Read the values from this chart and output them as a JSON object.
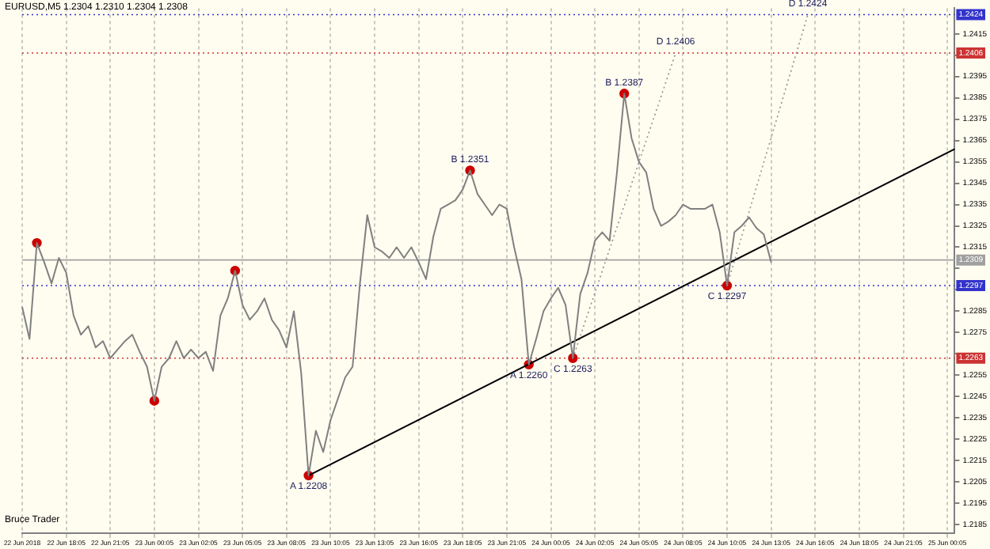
{
  "chart_data": {
    "type": "line",
    "title": "EURUSD,M5 1.2304 1.2310 1.2304 1.2308",
    "categories": [
      "22 Jun 2018",
      null,
      null,
      null,
      null,
      null,
      "22 Jun 18:05",
      null,
      null,
      null,
      null,
      null,
      "22 Jun 21:05",
      null,
      null,
      null,
      null,
      null,
      "23 Jun 00:05",
      null,
      null,
      null,
      null,
      null,
      "23 Jun 02:05",
      null,
      null,
      null,
      null,
      null,
      "23 Jun 05:05",
      null,
      null,
      null,
      null,
      null,
      "23 Jun 08:05",
      null,
      null,
      null,
      null,
      null,
      "23 Jun 10:05",
      null,
      null,
      null,
      null,
      null,
      "23 Jun 13:05",
      null,
      null,
      null,
      null,
      null,
      "23 Jun 16:05",
      null,
      null,
      null,
      null,
      null,
      "23 Jun 18:05",
      null,
      null,
      null,
      null,
      null,
      "23 Jun 21:05",
      null,
      null,
      null,
      null,
      null,
      "24 Jun 00:05",
      null,
      null,
      null,
      null,
      null,
      "24 Jun 02:05",
      null,
      null,
      null,
      null,
      null,
      "24 Jun 05:05",
      null,
      null,
      null,
      null,
      null,
      "24 Jun 08:05",
      null,
      null,
      null,
      null,
      null,
      "24 Jun 10:05",
      null,
      null,
      null,
      null,
      null,
      "24 Jun 13:05",
      null,
      null,
      null,
      null,
      null,
      "24 Jun 16:05",
      null,
      null,
      null,
      null,
      null,
      "24 Jun 18:05",
      null,
      null,
      null,
      null,
      null,
      "24 Jun 21:05",
      null,
      null,
      null,
      null,
      null,
      "25 Jun 00:05",
      null
    ],
    "series": [
      {
        "type": "line",
        "color": "#808080",
        "values": [
          1.2287,
          1.2272,
          1.2317,
          1.2308,
          1.2298,
          1.231,
          1.2303,
          1.2283,
          1.2274,
          1.2278,
          1.2268,
          1.2271,
          1.2263,
          1.2267,
          1.2271,
          1.2274,
          1.2266,
          1.2259,
          1.2243,
          1.2259,
          1.2263,
          1.2271,
          1.2263,
          1.2267,
          1.2263,
          1.2266,
          1.2257,
          1.2283,
          1.2291,
          1.2304,
          1.2288,
          1.2281,
          1.2285,
          1.2291,
          1.2281,
          1.2276,
          1.2268,
          1.2285,
          1.2256,
          1.2208,
          1.2229,
          1.2219,
          1.2234,
          1.2244,
          1.2254,
          1.2259,
          1.2298,
          1.233,
          1.2315,
          1.2313,
          1.231,
          1.2315,
          1.231,
          1.2315,
          1.2308,
          1.23,
          1.232,
          1.2333,
          1.2335,
          1.2337,
          1.2342,
          1.2351,
          1.234,
          1.2335,
          1.233,
          1.2335,
          1.2333,
          1.2315,
          1.23,
          1.226,
          1.2272,
          1.2285,
          1.2291,
          1.2296,
          1.2288,
          1.2263,
          1.2293,
          1.2303,
          1.2318,
          1.2322,
          1.2318,
          1.235,
          1.2387,
          1.2366,
          1.2355,
          1.235,
          1.2333,
          1.2325,
          1.2327,
          1.233,
          1.2335,
          1.2333,
          1.2333,
          1.2333,
          1.2335,
          1.2322,
          1.2297,
          1.2322,
          1.2325,
          1.2329,
          1.2324,
          1.2321,
          1.2308,
          null,
          null,
          null,
          null,
          null,
          null,
          null,
          null,
          null,
          null,
          null,
          null,
          null,
          null,
          null,
          null,
          null,
          null,
          null,
          null,
          null,
          null,
          null,
          null,
          null
        ]
      },
      {
        "type": "line",
        "color": "#000000",
        "values": [
          null,
          null,
          null,
          null,
          null,
          null,
          null,
          null,
          null,
          null,
          null,
          null,
          null,
          null,
          null,
          null,
          null,
          null,
          null,
          null,
          null,
          null,
          null,
          null,
          null,
          null,
          null,
          null,
          null,
          null,
          null,
          null,
          null,
          null,
          null,
          null,
          null,
          null,
          null,
          1.2208,
          null,
          null,
          null,
          null,
          null,
          null,
          null,
          null,
          null,
          null,
          null,
          null,
          null,
          null,
          null,
          null,
          null,
          null,
          null,
          null,
          null,
          null,
          null,
          null,
          null,
          null,
          null,
          null,
          null,
          null,
          null,
          null,
          null,
          null,
          null,
          null,
          null,
          null,
          null,
          null,
          null,
          null,
          null,
          null,
          null,
          null,
          null,
          null,
          null,
          null,
          null,
          null,
          null,
          null,
          null,
          null,
          null,
          null,
          null,
          null,
          null,
          null,
          null,
          null,
          null,
          null,
          null,
          null,
          null,
          null,
          null,
          null,
          null,
          null,
          null,
          null,
          null,
          null,
          null,
          null,
          null,
          null,
          null,
          null,
          null,
          null,
          null,
          1.2361
        ]
      },
      {
        "type": "line",
        "color": "#909090",
        "line_style": "dotted",
        "values": [
          null,
          null,
          null,
          null,
          null,
          null,
          null,
          null,
          null,
          null,
          null,
          null,
          null,
          null,
          null,
          null,
          null,
          null,
          null,
          null,
          null,
          null,
          null,
          null,
          null,
          null,
          null,
          null,
          null,
          null,
          null,
          null,
          null,
          null,
          null,
          null,
          null,
          null,
          null,
          null,
          null,
          null,
          null,
          null,
          null,
          null,
          null,
          null,
          null,
          null,
          null,
          null,
          null,
          null,
          null,
          null,
          null,
          null,
          null,
          null,
          null,
          null,
          null,
          null,
          null,
          null,
          null,
          null,
          null,
          null,
          null,
          null,
          null,
          null,
          null,
          1.2263,
          null,
          null,
          null,
          null,
          null,
          null,
          null,
          null,
          null,
          null,
          null,
          null,
          null,
          1.2406,
          null,
          null,
          null,
          null,
          null,
          null,
          null,
          null,
          null,
          null,
          null,
          null,
          null,
          null,
          null,
          null,
          null,
          null,
          null,
          null,
          null,
          null,
          null,
          null,
          null,
          null,
          null,
          null,
          null,
          null,
          null,
          null,
          null,
          null,
          null,
          null,
          null,
          null
        ],
        "value_labels": [
          null,
          null,
          null,
          null,
          null,
          null,
          null,
          null,
          null,
          null,
          null,
          null,
          null,
          null,
          null,
          null,
          null,
          null,
          null,
          null,
          null,
          null,
          null,
          null,
          null,
          null,
          null,
          null,
          null,
          null,
          null,
          null,
          null,
          null,
          null,
          null,
          null,
          null,
          null,
          null,
          null,
          null,
          null,
          null,
          null,
          null,
          null,
          null,
          null,
          null,
          null,
          null,
          null,
          null,
          null,
          null,
          null,
          null,
          null,
          null,
          null,
          null,
          null,
          null,
          null,
          null,
          null,
          null,
          null,
          null,
          null,
          null,
          null,
          null,
          null,
          null,
          null,
          null,
          null,
          null,
          null,
          null,
          null,
          null,
          null,
          null,
          null,
          null,
          null,
          "D 1.2406",
          null,
          null,
          null,
          null,
          null,
          null,
          null,
          null,
          null,
          null,
          null,
          null,
          null,
          null,
          null,
          null,
          null,
          null,
          null,
          null,
          null,
          null,
          null,
          null,
          null,
          null,
          null,
          null,
          null,
          null,
          null,
          null,
          null,
          null,
          null,
          null,
          null,
          null
        ]
      },
      {
        "type": "line",
        "color": "#909090",
        "line_style": "dotted",
        "values": [
          null,
          null,
          null,
          null,
          null,
          null,
          null,
          null,
          null,
          null,
          null,
          null,
          null,
          null,
          null,
          null,
          null,
          null,
          null,
          null,
          null,
          null,
          null,
          null,
          null,
          null,
          null,
          null,
          null,
          null,
          null,
          null,
          null,
          null,
          null,
          null,
          null,
          null,
          null,
          null,
          null,
          null,
          null,
          null,
          null,
          null,
          null,
          null,
          null,
          null,
          null,
          null,
          null,
          null,
          null,
          null,
          null,
          null,
          null,
          null,
          null,
          null,
          null,
          null,
          null,
          null,
          null,
          null,
          null,
          null,
          null,
          null,
          null,
          null,
          null,
          null,
          null,
          null,
          null,
          null,
          null,
          null,
          null,
          null,
          null,
          null,
          null,
          null,
          null,
          null,
          null,
          null,
          null,
          null,
          null,
          null,
          1.2297,
          null,
          null,
          null,
          null,
          null,
          null,
          null,
          null,
          null,
          null,
          1.2424,
          null,
          null,
          null,
          null,
          null,
          null,
          null,
          null,
          null,
          null,
          null,
          null,
          null,
          null,
          null,
          null,
          null,
          null,
          null,
          null
        ],
        "value_labels": [
          null,
          null,
          null,
          null,
          null,
          null,
          null,
          null,
          null,
          null,
          null,
          null,
          null,
          null,
          null,
          null,
          null,
          null,
          null,
          null,
          null,
          null,
          null,
          null,
          null,
          null,
          null,
          null,
          null,
          null,
          null,
          null,
          null,
          null,
          null,
          null,
          null,
          null,
          null,
          null,
          null,
          null,
          null,
          null,
          null,
          null,
          null,
          null,
          null,
          null,
          null,
          null,
          null,
          null,
          null,
          null,
          null,
          null,
          null,
          null,
          null,
          null,
          null,
          null,
          null,
          null,
          null,
          null,
          null,
          null,
          null,
          null,
          null,
          null,
          null,
          null,
          null,
          null,
          null,
          null,
          null,
          null,
          null,
          null,
          null,
          null,
          null,
          null,
          null,
          null,
          null,
          null,
          null,
          null,
          null,
          null,
          null,
          null,
          null,
          null,
          null,
          null,
          null,
          null,
          null,
          null,
          null,
          "D 1.2424",
          null,
          null,
          null,
          null,
          null,
          null,
          null,
          null,
          null,
          null,
          null,
          null,
          null,
          null,
          null,
          null,
          null,
          null,
          null,
          null
        ]
      },
      {
        "type": "scatter",
        "color": "#cc0000",
        "marker": "circle",
        "values": [
          null,
          null,
          1.2317,
          null,
          null,
          null,
          null,
          null,
          null,
          null,
          null,
          null,
          null,
          null,
          null,
          null,
          null,
          null,
          1.2243,
          null,
          null,
          null,
          null,
          null,
          null,
          null,
          null,
          null,
          null,
          1.2304,
          null,
          null,
          null,
          null,
          null,
          null,
          null,
          null,
          null,
          1.2208,
          null,
          null,
          null,
          null,
          null,
          null,
          null,
          null,
          null,
          null,
          null,
          null,
          null,
          null,
          null,
          null,
          null,
          null,
          null,
          null,
          null,
          1.2351,
          null,
          null,
          null,
          null,
          null,
          null,
          null,
          1.226,
          null,
          null,
          null,
          null,
          null,
          1.2263,
          null,
          null,
          null,
          null,
          null,
          null,
          1.2387,
          null,
          null,
          null,
          null,
          null,
          null,
          null,
          null,
          null,
          null,
          null,
          null,
          null,
          1.2297,
          null,
          null,
          null,
          null,
          null,
          null,
          null,
          null,
          null,
          null,
          null,
          null,
          null,
          null,
          null,
          null,
          null,
          null,
          null,
          null,
          null,
          null,
          null,
          null,
          null,
          null,
          null,
          null,
          null,
          null,
          null
        ],
        "value_labels": [
          null,
          null,
          null,
          null,
          null,
          null,
          null,
          null,
          null,
          null,
          null,
          null,
          null,
          null,
          null,
          null,
          null,
          null,
          null,
          null,
          null,
          null,
          null,
          null,
          null,
          null,
          null,
          null,
          null,
          null,
          null,
          null,
          null,
          null,
          null,
          null,
          null,
          null,
          null,
          "A 1.2208",
          null,
          null,
          null,
          null,
          null,
          null,
          null,
          null,
          null,
          null,
          null,
          null,
          null,
          null,
          null,
          null,
          null,
          null,
          null,
          null,
          null,
          "B 1.2351",
          null,
          null,
          null,
          null,
          null,
          null,
          null,
          "A 1.2260",
          null,
          null,
          null,
          null,
          null,
          "C 1.2263",
          null,
          null,
          null,
          null,
          null,
          null,
          "B 1.2387",
          null,
          null,
          null,
          null,
          null,
          null,
          null,
          null,
          null,
          null,
          null,
          null,
          null,
          "C 1.2297",
          null,
          null,
          null,
          null,
          null,
          null,
          null,
          null,
          null,
          null,
          null,
          null,
          null,
          null,
          null,
          null,
          null,
          null,
          null,
          null,
          null,
          null,
          null,
          null,
          null,
          null,
          null,
          null,
          null,
          null,
          null
        ]
      }
    ],
    "ylim": [
      1.2181,
      1.2427
    ],
    "yticks": [
      1.2185,
      1.2195,
      1.2205,
      1.2215,
      1.2225,
      1.2235,
      1.2245,
      1.2255,
      {
        "value": 1.2265,
        "label": null
      },
      1.2275,
      1.2285,
      {
        "value": 1.2295,
        "label": null
      },
      {
        "value": 1.2305,
        "label": null
      },
      1.2315,
      1.2325,
      1.2335,
      1.2345,
      1.2355,
      1.2365,
      1.2375,
      1.2385,
      1.2395,
      {
        "value": 1.2405,
        "label": null
      },
      1.2415
    ],
    "ref_lines": [
      {
        "axis": "y",
        "value": 1.2424,
        "label": "1.2424",
        "color": "#3333cc",
        "line_style": "dotted"
      },
      {
        "axis": "y",
        "value": 1.2406,
        "label": "1.2406",
        "color": "#cc3333",
        "line_style": "dotted"
      },
      {
        "axis": "y",
        "value": 1.2309,
        "label": "1.2309",
        "color": "#a0a0a0",
        "line_style": "solid"
      },
      {
        "axis": "y",
        "value": 1.2297,
        "label": "1.2297",
        "color": "#3333cc",
        "line_style": "dotted"
      },
      {
        "axis": "y",
        "value": 1.2263,
        "label": "1.2263",
        "color": "#cc3333",
        "line_style": "dotted"
      }
    ],
    "annotations": [
      "Bruce Trader"
    ],
    "grid": "x",
    "legend": false
  }
}
